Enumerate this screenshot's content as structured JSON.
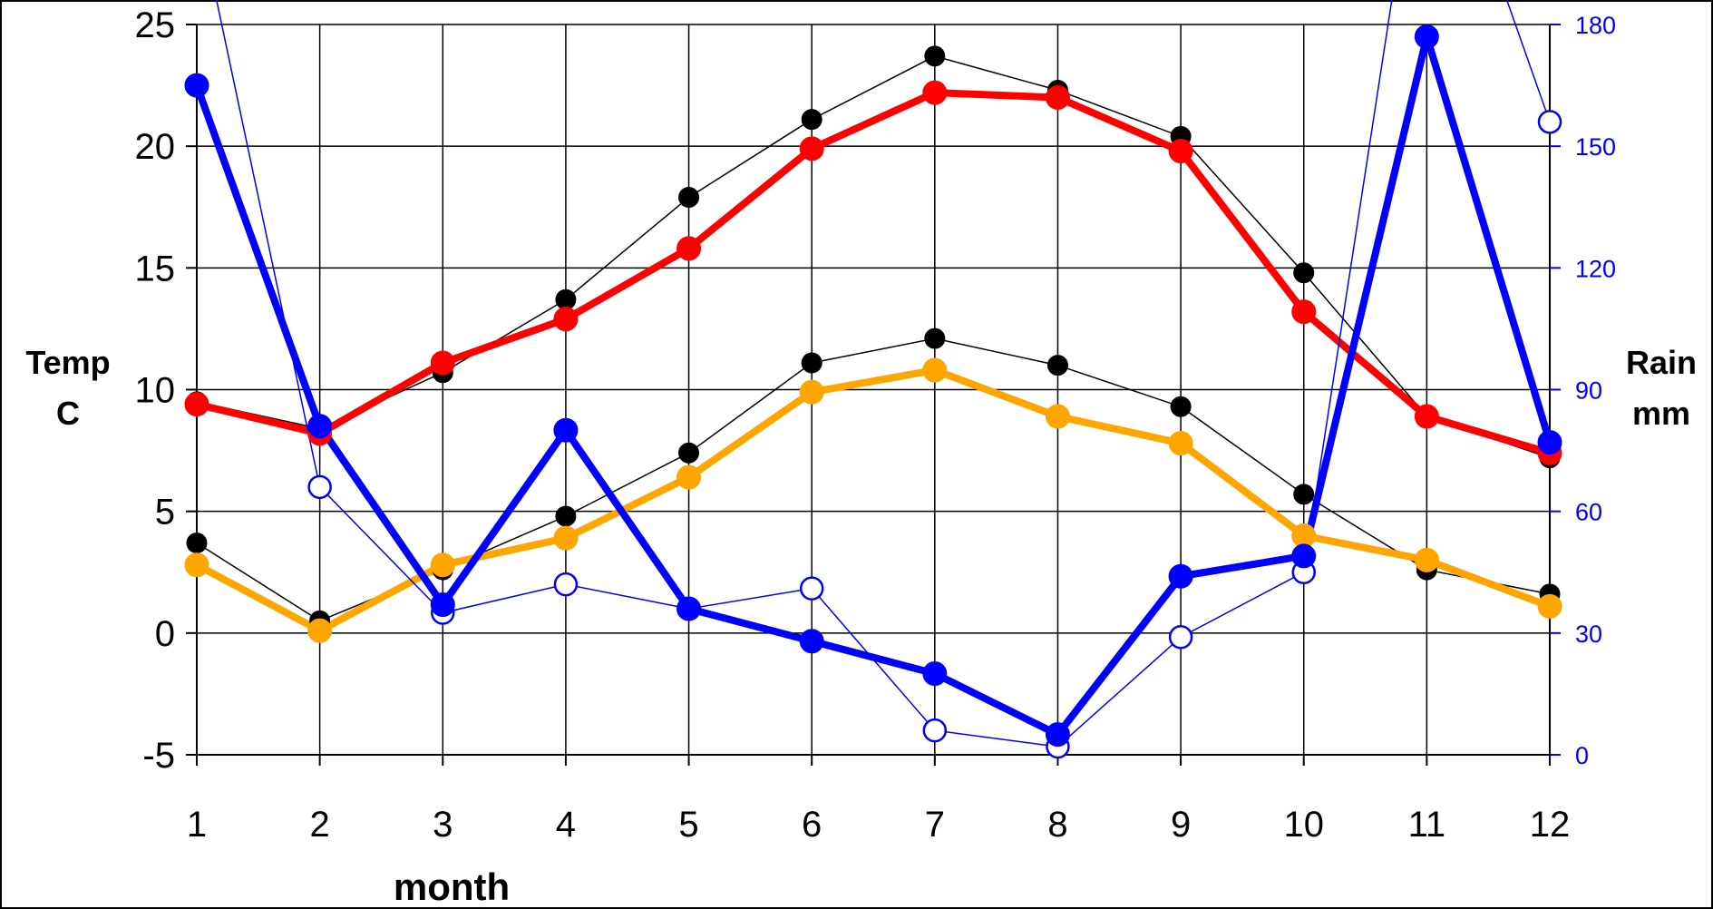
{
  "chart_data": {
    "type": "line",
    "x": [
      1,
      2,
      3,
      4,
      5,
      6,
      7,
      8,
      9,
      10,
      11,
      12
    ],
    "xlabel": "month",
    "ylabel_left": [
      "Temp",
      "C"
    ],
    "ylabel_right": [
      "Rain",
      "mm"
    ],
    "y_left_lim": [
      -5,
      25
    ],
    "y_left_ticks": [
      -5,
      0,
      5,
      10,
      15,
      20,
      25
    ],
    "y_right_lim": [
      0,
      180
    ],
    "y_right_ticks": [
      0,
      30,
      60,
      90,
      120,
      150,
      180
    ],
    "grid": true,
    "series": [
      {
        "axis": "left",
        "color": "#000000",
        "style": "thin",
        "marker": "filled",
        "values": [
          9.5,
          8.4,
          10.7,
          13.7,
          17.9,
          21.1,
          23.7,
          22.3,
          20.4,
          14.8,
          8.9,
          7.2
        ]
      },
      {
        "axis": "left",
        "color": "#ff0000",
        "style": "thick",
        "marker": "filled",
        "values": [
          9.4,
          8.2,
          11.1,
          12.9,
          15.8,
          19.9,
          22.2,
          22.0,
          19.8,
          13.2,
          8.9,
          7.4
        ]
      },
      {
        "axis": "left",
        "color": "#000000",
        "style": "thin",
        "marker": "filled",
        "values": [
          3.7,
          0.5,
          2.6,
          4.8,
          7.4,
          11.1,
          12.1,
          11.0,
          9.3,
          5.7,
          2.6,
          1.6
        ]
      },
      {
        "axis": "left",
        "color": "#ffa500",
        "style": "thick",
        "marker": "filled",
        "values": [
          2.8,
          0.1,
          2.8,
          3.9,
          6.4,
          9.9,
          10.8,
          8.9,
          7.8,
          4.0,
          3.0,
          1.1
        ]
      },
      {
        "axis": "right",
        "color": "#0000ff",
        "style": "thin",
        "marker": "open",
        "values": [
          209,
          66,
          35,
          42,
          36,
          41,
          6,
          2,
          29,
          45,
          242,
          156
        ]
      },
      {
        "axis": "right",
        "color": "#0000ff",
        "style": "thick",
        "marker": "filled",
        "values": [
          165,
          81,
          37,
          80,
          36,
          28,
          20,
          5,
          44,
          49,
          177,
          77
        ]
      }
    ]
  }
}
